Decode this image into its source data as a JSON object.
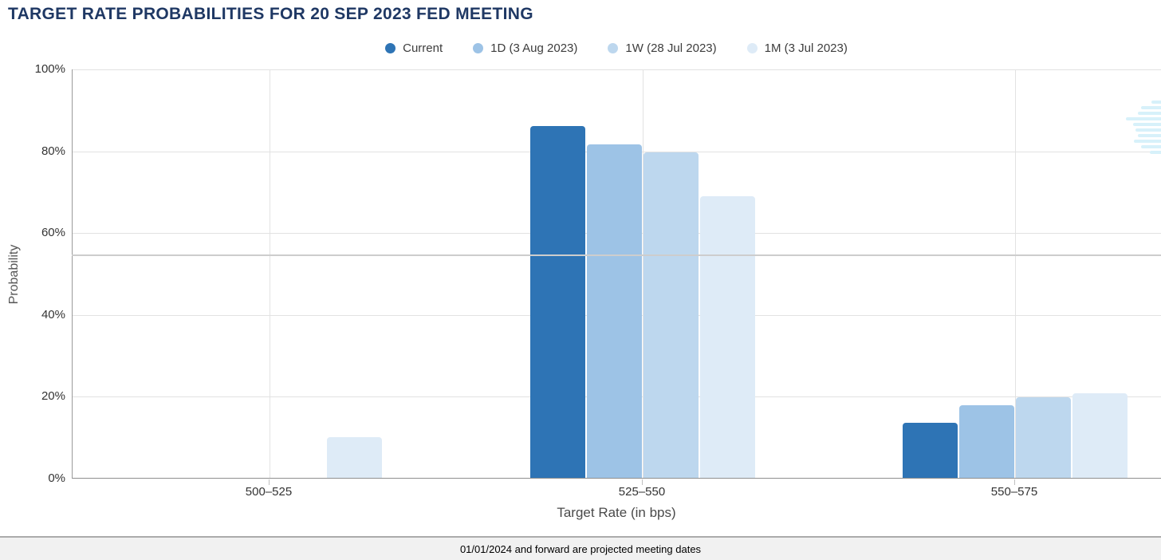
{
  "title": "TARGET RATE PROBABILITIES FOR 20 SEP 2023 FED MEETING",
  "chart_data": {
    "type": "bar",
    "title": "TARGET RATE PROBABILITIES FOR 20 SEP 2023 FED MEETING",
    "categories": [
      "500–525",
      "525–550",
      "550–575"
    ],
    "series": [
      {
        "name": "Current",
        "color": "#2E74B5",
        "values": [
          0,
          86.0,
          13.5
        ]
      },
      {
        "name": "1D (3 Aug 2023)",
        "color": "#9DC3E6",
        "values": [
          0,
          81.4,
          17.8
        ]
      },
      {
        "name": "1W (28 Jul 2023)",
        "color": "#BDD7EE",
        "values": [
          0,
          79.5,
          19.7
        ]
      },
      {
        "name": "1M (3 Jul 2023)",
        "color": "#DEEBF7",
        "values": [
          10.0,
          68.8,
          20.6
        ]
      }
    ],
    "xlabel": "Target Rate (in bps)",
    "ylabel": "Probability",
    "ylim": [
      0,
      100
    ],
    "yticks": [
      {
        "value": 0,
        "label": "0%"
      },
      {
        "value": 20,
        "label": "20%"
      },
      {
        "value": 40,
        "label": "40%"
      },
      {
        "value": 60,
        "label": "60%"
      },
      {
        "value": 80,
        "label": "80%"
      },
      {
        "value": 100,
        "label": "100%"
      }
    ],
    "grid": true,
    "legend_position": "top"
  },
  "footer": {
    "note": "01/01/2024 and forward are projected meeting dates"
  },
  "colors": {
    "title_text": "#1f3864",
    "watermark": "#d7f1fa",
    "gridline": "#e2e2e2",
    "axis_line": "#9a9a9a"
  }
}
